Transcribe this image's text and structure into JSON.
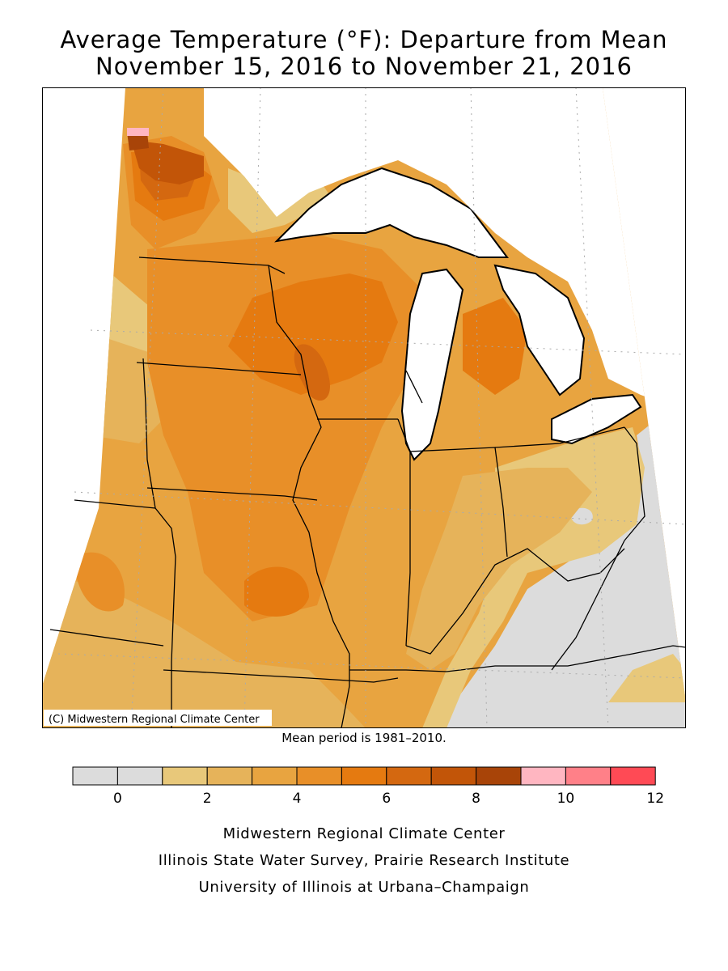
{
  "title_line1": "Average Temperature (°F): Departure from Mean",
  "title_line2": "November 15, 2016 to November 21, 2016",
  "copyright": "(C) Midwestern Regional Climate Center",
  "mean_period": "Mean period is 1981–2010.",
  "legend": {
    "ticks": [
      "0",
      "2",
      "4",
      "6",
      "8",
      "10",
      "12"
    ],
    "colors": [
      "#dcdcdc",
      "#dcdcdc",
      "#e8c87a",
      "#e6b35a",
      "#e8a440",
      "#e88f28",
      "#e57a10",
      "#d46810",
      "#c25508",
      "#a84408",
      "#ffb6c1",
      "#ff8088",
      "#ff4a55"
    ]
  },
  "credits": [
    "Midwestern Regional Climate Center",
    "Illinois State Water Survey, Prairie Research Institute",
    "University of Illinois at Urbana–Champaign"
  ],
  "colors": {
    "gray": "#dcdcdc",
    "c1_2": "#e8c87a",
    "c2_3": "#e6b35a",
    "c3_4": "#e8a440",
    "c4_5": "#e88f28",
    "c5_6": "#e57a10",
    "c6_7": "#d46810",
    "c7_8": "#c25508",
    "c8_9": "#a84408",
    "c9_10": "#ffb6c1"
  }
}
